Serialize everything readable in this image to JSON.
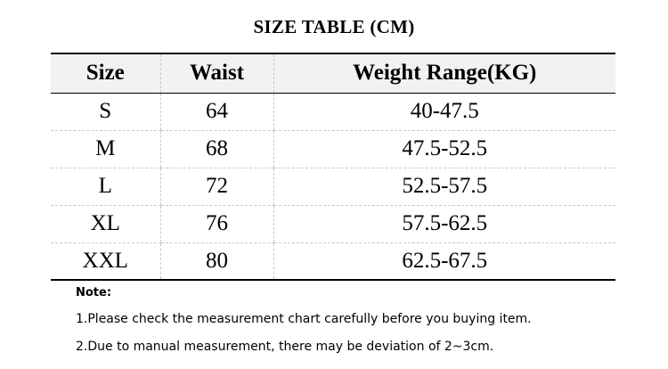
{
  "title": "SIZE TABLE (CM)",
  "table": {
    "headers": [
      "Size",
      "Waist",
      "Weight Range(KG)"
    ],
    "rows": [
      [
        "S",
        "64",
        "40-47.5"
      ],
      [
        "M",
        "68",
        "47.5-52.5"
      ],
      [
        "L",
        "72",
        "52.5-57.5"
      ],
      [
        "XL",
        "76",
        "57.5-62.5"
      ],
      [
        "XXL",
        "80",
        "62.5-67.5"
      ]
    ]
  },
  "notes": {
    "heading": "Note:",
    "items": [
      "1.Please check the measurement chart carefully before you buying item.",
      "2.Due to manual measurement, there may be deviation of 2~3cm."
    ]
  },
  "colors": {
    "header_background": "#f2f2f2",
    "rule": "#000000",
    "grid_line": "#c8c8c8",
    "text": "#000000"
  }
}
